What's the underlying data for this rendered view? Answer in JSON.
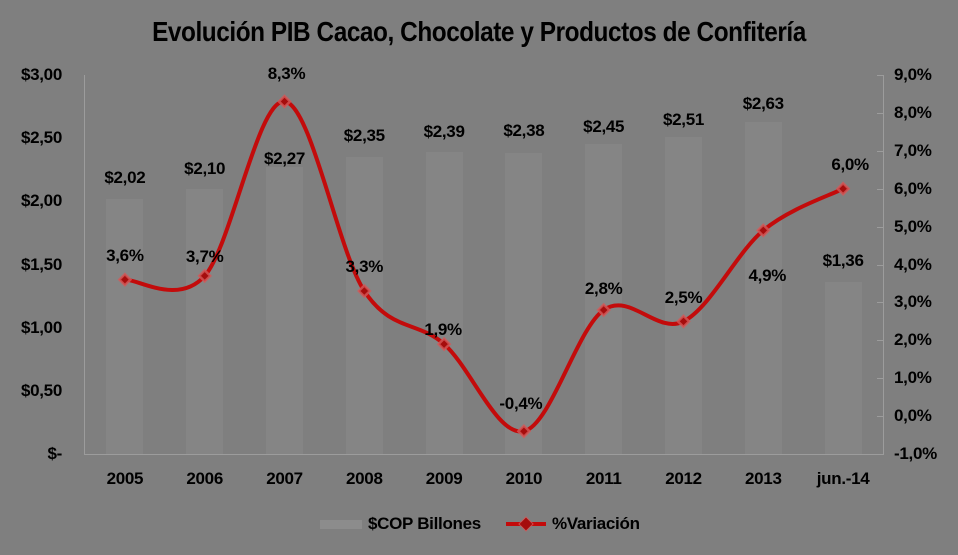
{
  "title": "Evolución PIB Cacao, Chocolate y Productos de Confitería",
  "legend": {
    "series1": "$COP Billones",
    "series2": "%Variación"
  },
  "axes": {
    "left_ticks": [
      "$3,00",
      "$2,50",
      "$2,00",
      "$1,50",
      "$1,00",
      "$0,50",
      "$-"
    ],
    "right_ticks": [
      "9,0%",
      "8,0%",
      "7,0%",
      "6,0%",
      "5,0%",
      "4,0%",
      "3,0%",
      "2,0%",
      "1,0%",
      "0,0%",
      "-1,0%"
    ],
    "x_ticks": [
      "2005",
      "2006",
      "2007",
      "2008",
      "2009",
      "2010",
      "2011",
      "2012",
      "2013",
      "jun.-14"
    ]
  },
  "chart_data": {
    "type": "bar+line combo",
    "title": "Evolución PIB Cacao, Chocolate y Productos de Confitería",
    "categories": [
      "2005",
      "2006",
      "2007",
      "2008",
      "2009",
      "2010",
      "2011",
      "2012",
      "2013",
      "jun.-14"
    ],
    "series": [
      {
        "name": "$COP Billones",
        "type": "bar",
        "axis": "left",
        "values": [
          2.02,
          2.1,
          2.27,
          2.35,
          2.39,
          2.38,
          2.45,
          2.51,
          2.63,
          1.36
        ],
        "labels": [
          "$2,02",
          "$2,10",
          "$2,27",
          "$2,35",
          "$2,39",
          "$2,38",
          "$2,45",
          "$2,51",
          "$2,63",
          "$1,36"
        ]
      },
      {
        "name": "%Variación",
        "type": "line",
        "axis": "right",
        "values": [
          3.6,
          3.7,
          8.3,
          3.3,
          1.9,
          -0.4,
          2.8,
          2.5,
          4.9,
          6.0
        ],
        "labels": [
          "3,6%",
          "3,7%",
          "8,3%",
          "3,3%",
          "1,9%",
          "-0,4%",
          "2,8%",
          "2,5%",
          "4,9%",
          "6,0%"
        ]
      }
    ],
    "left_axis_range": [
      0,
      3.0
    ],
    "right_axis_range": [
      -1.0,
      9.0
    ],
    "grid": "off",
    "legend_position": "bottom",
    "colors": {
      "background": "#7f7f7f",
      "bar": "#858585",
      "line": "#c30b0b",
      "marker": "#a50d0d",
      "text": "#000000",
      "axis": "#9c9c9c"
    }
  }
}
